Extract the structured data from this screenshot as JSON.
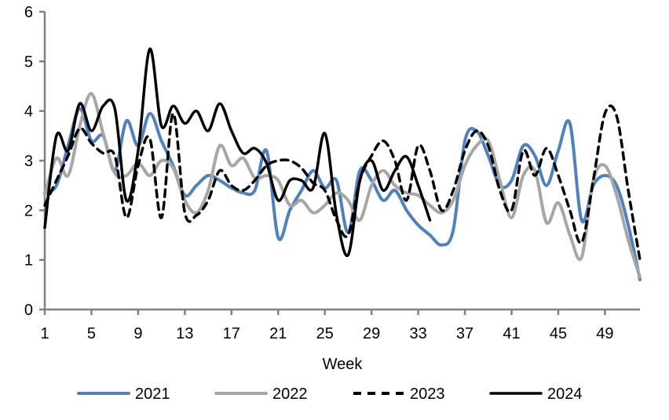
{
  "chart_data": {
    "type": "line",
    "title": "",
    "x_label": "Week",
    "y_label": "",
    "xlim": [
      1,
      52
    ],
    "ylim": [
      0,
      6
    ],
    "x_ticks": [
      1,
      5,
      9,
      13,
      17,
      21,
      25,
      29,
      33,
      37,
      41,
      45,
      49
    ],
    "y_ticks": [
      0,
      1,
      2,
      3,
      4,
      5,
      6
    ],
    "grid": false,
    "legend_position": "bottom",
    "axis_color": "#808080",
    "text_color": "#000000",
    "x": [
      1,
      2,
      3,
      4,
      5,
      6,
      7,
      8,
      9,
      10,
      11,
      12,
      13,
      14,
      15,
      16,
      17,
      18,
      19,
      20,
      21,
      22,
      23,
      24,
      25,
      26,
      27,
      28,
      29,
      30,
      31,
      32,
      33,
      34,
      35,
      36,
      37,
      38,
      39,
      40,
      41,
      42,
      43,
      44,
      45,
      46,
      47,
      48,
      49,
      50,
      51,
      52
    ],
    "series": [
      {
        "name": "2021",
        "color": "#4F81BD",
        "style": "solid",
        "width": 4,
        "values": [
          2.35,
          2.5,
          3.3,
          4.05,
          3.4,
          3.5,
          2.8,
          3.8,
          3.3,
          3.95,
          3.4,
          2.9,
          2.3,
          2.5,
          2.7,
          2.6,
          2.45,
          2.35,
          2.4,
          3.2,
          1.45,
          2.0,
          2.4,
          2.8,
          2.45,
          2.6,
          1.55,
          2.8,
          2.6,
          2.2,
          2.4,
          2.0,
          1.7,
          1.5,
          1.3,
          1.6,
          3.4,
          3.6,
          3.1,
          2.5,
          2.6,
          3.3,
          3.1,
          2.5,
          3.2,
          3.75,
          1.8,
          2.5,
          2.7,
          2.5,
          1.7,
          0.6
        ]
      },
      {
        "name": "2022",
        "color": "#A6A6A6",
        "style": "solid",
        "width": 4,
        "values": [
          2.3,
          3.05,
          2.7,
          3.7,
          4.35,
          3.55,
          2.75,
          2.7,
          2.95,
          2.7,
          3.0,
          2.85,
          2.2,
          1.95,
          2.4,
          3.3,
          2.9,
          3.05,
          2.65,
          2.7,
          2.6,
          2.1,
          2.2,
          1.95,
          2.1,
          2.35,
          2.2,
          1.8,
          2.5,
          2.8,
          2.5,
          2.35,
          2.3,
          2.1,
          1.95,
          2.2,
          2.9,
          3.3,
          3.4,
          2.6,
          1.85,
          2.7,
          2.8,
          1.75,
          2.15,
          1.5,
          1.05,
          2.6,
          2.9,
          2.3,
          1.4,
          0.65
        ]
      },
      {
        "name": "2023",
        "color": "#000000",
        "style": "dashed",
        "width": 3.5,
        "values": [
          2.1,
          2.6,
          3.1,
          3.65,
          3.35,
          3.15,
          3.1,
          1.85,
          2.9,
          3.45,
          1.85,
          3.95,
          1.95,
          1.9,
          2.2,
          2.8,
          2.5,
          2.4,
          2.6,
          2.9,
          3.0,
          3.0,
          2.85,
          2.55,
          2.4,
          1.8,
          1.5,
          2.6,
          3.1,
          3.4,
          3.0,
          2.2,
          3.3,
          2.8,
          2.0,
          2.4,
          3.2,
          3.6,
          3.3,
          2.4,
          2.0,
          3.2,
          2.7,
          3.25,
          2.7,
          2.0,
          1.35,
          2.6,
          3.95,
          3.9,
          2.4,
          1.0
        ]
      },
      {
        "name": "2024",
        "color": "#000000",
        "style": "solid",
        "width": 3.5,
        "values": [
          1.65,
          3.5,
          3.2,
          4.15,
          3.6,
          4.1,
          4.05,
          2.2,
          3.2,
          5.25,
          3.7,
          4.1,
          3.75,
          4.0,
          3.6,
          4.15,
          3.6,
          3.15,
          3.25,
          2.95,
          2.2,
          2.6,
          2.6,
          2.45,
          3.55,
          1.9,
          1.1,
          2.6,
          3.0,
          2.4,
          2.8,
          3.08,
          2.5,
          1.8
        ]
      }
    ]
  },
  "legend": {
    "items": [
      {
        "label": "2021"
      },
      {
        "label": "2022"
      },
      {
        "label": "2023"
      },
      {
        "label": "2024"
      }
    ]
  }
}
